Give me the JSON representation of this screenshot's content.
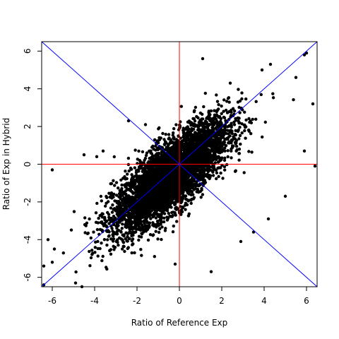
{
  "chart_data": {
    "type": "scatter",
    "title": "",
    "xlabel": "Ratio of Reference Exp",
    "ylabel": "Ratio of Exp in Hybrid",
    "xlim": [
      -6.5,
      6.5
    ],
    "ylim": [
      -6.5,
      6.5
    ],
    "x_ticks": [
      -6,
      -4,
      -2,
      0,
      2,
      4,
      6
    ],
    "y_ticks": [
      -6,
      -4,
      -2,
      0,
      2,
      4,
      6
    ],
    "x_tick_labels": [
      "-6",
      "-4",
      "-2",
      "0",
      "2",
      "4",
      "6"
    ],
    "y_tick_labels": [
      "-6",
      "-4",
      "-2",
      "0",
      "2",
      "4",
      "6"
    ],
    "grid": false,
    "point_color": "#000000",
    "reference_lines": [
      {
        "kind": "horizontal",
        "y": 0,
        "color": "#ff0000"
      },
      {
        "kind": "vertical",
        "x": 0,
        "color": "#ff0000"
      },
      {
        "kind": "diagonal",
        "slope": 1,
        "intercept": 0,
        "color": "#0000ff"
      },
      {
        "kind": "diagonal",
        "slope": -1,
        "intercept": 0,
        "color": "#0000ff"
      }
    ],
    "approx_point_count": 5000,
    "distribution": {
      "center": [
        -0.4,
        -0.6
      ],
      "sd_x": 1.35,
      "sd_y": 1.45,
      "correlation": 0.78
    },
    "notable_points": [
      {
        "x": 6.0,
        "y": 5.9
      },
      {
        "x": 5.9,
        "y": 5.8
      },
      {
        "x": 1.1,
        "y": 5.6
      },
      {
        "x": 4.3,
        "y": 5.3
      },
      {
        "x": 3.9,
        "y": 5.0
      },
      {
        "x": 2.4,
        "y": 4.3
      },
      {
        "x": 6.3,
        "y": 3.2
      },
      {
        "x": 5.5,
        "y": 4.6
      },
      {
        "x": 6.4,
        "y": -0.1
      },
      {
        "x": 5.9,
        "y": 0.7
      },
      {
        "x": 5.0,
        "y": -1.7
      },
      {
        "x": 3.5,
        "y": -3.6
      },
      {
        "x": 2.9,
        "y": -4.1
      },
      {
        "x": 1.5,
        "y": -5.7
      },
      {
        "x": -6.0,
        "y": -5.2
      },
      {
        "x": -6.4,
        "y": -5.4
      },
      {
        "x": -6.4,
        "y": -6.4
      },
      {
        "x": -4.6,
        "y": -6.5
      },
      {
        "x": -4.9,
        "y": -6.3
      },
      {
        "x": -5.9,
        "y": -4.5
      },
      {
        "x": -6.2,
        "y": -4.0
      },
      {
        "x": -6.0,
        "y": -0.3
      },
      {
        "x": -4.5,
        "y": 0.5
      },
      {
        "x": -3.9,
        "y": 0.4
      },
      {
        "x": -3.6,
        "y": 0.7
      },
      {
        "x": -2.4,
        "y": 2.3
      },
      {
        "x": -1.6,
        "y": 2.1
      },
      {
        "x": -0.2,
        "y": -5.3
      },
      {
        "x": 4.2,
        "y": -2.9
      }
    ]
  }
}
